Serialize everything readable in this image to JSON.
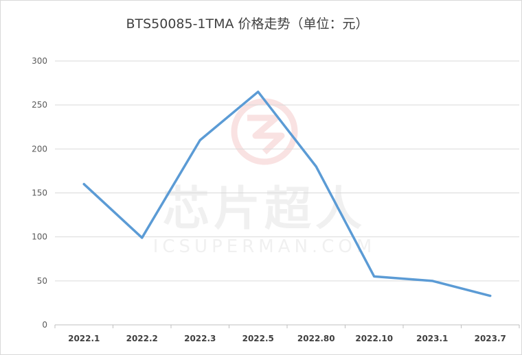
{
  "chart_data": {
    "type": "line",
    "title": "BTS50085-1TMA  价格走势（单位：元）",
    "categories": [
      "2022.1",
      "2022.2",
      "2022.3",
      "2022.5",
      "2022.80",
      "2022.10",
      "2023.1",
      "2023.7"
    ],
    "series": [
      {
        "values": [
          160,
          99,
          210,
          265,
          180,
          55,
          50,
          33
        ]
      }
    ],
    "ylim": [
      0,
      300
    ],
    "yticks": [
      0,
      50,
      100,
      150,
      200,
      250,
      300
    ],
    "grid": true,
    "line_color": "#5b9bd5"
  },
  "watermark": {
    "text": "芯片超人",
    "subtext": "ICSUPERMAN.COM"
  }
}
